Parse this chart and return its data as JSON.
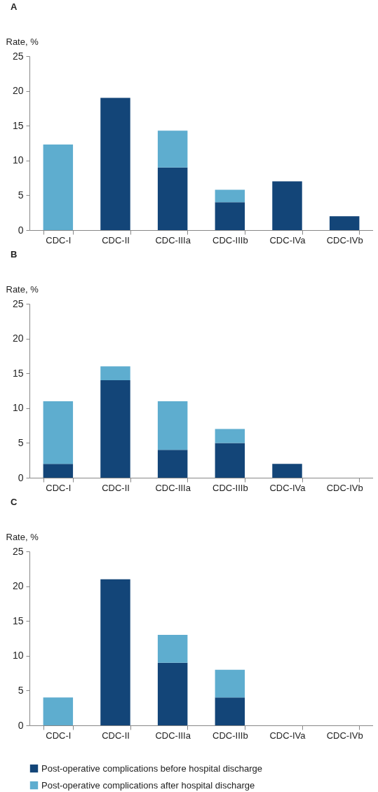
{
  "chart_data": [
    {
      "type": "bar",
      "title": "A",
      "ylabel": "Rate, %",
      "stacked": true,
      "categories": [
        "CDC-I",
        "CDC-II",
        "CDC-IIIa",
        "CDC-IIIb",
        "CDC-IVa",
        "CDC-IVb"
      ],
      "ylim": [
        0,
        25
      ],
      "yticks": [
        0,
        5,
        10,
        15,
        20,
        25
      ],
      "series": [
        {
          "color": "#134578",
          "values": [
            0,
            19,
            9,
            4,
            7,
            2
          ]
        },
        {
          "color": "#5eadcf",
          "values": [
            12.3,
            0,
            5.3,
            1.8,
            0,
            0
          ]
        }
      ]
    },
    {
      "type": "bar",
      "title": "B",
      "ylabel": "Rate, %",
      "stacked": true,
      "categories": [
        "CDC-I",
        "CDC-II",
        "CDC-IIIa",
        "CDC-IIIb",
        "CDC-IVa",
        "CDC-IVb"
      ],
      "ylim": [
        0,
        25
      ],
      "yticks": [
        0,
        5,
        10,
        15,
        20,
        25
      ],
      "series": [
        {
          "color": "#134578",
          "values": [
            2,
            14,
            4,
            5,
            2,
            0
          ]
        },
        {
          "color": "#5eadcf",
          "values": [
            9,
            2,
            7,
            2,
            0,
            0
          ]
        }
      ]
    },
    {
      "type": "bar",
      "title": "C",
      "ylabel": "Rate, %",
      "stacked": true,
      "legend": "bottom",
      "categories": [
        "CDC-I",
        "CDC-II",
        "CDC-IIIa",
        "CDC-IIIb",
        "CDC-IVa",
        "CDC-IVb"
      ],
      "ylim": [
        0,
        25
      ],
      "yticks": [
        0,
        5,
        10,
        15,
        20,
        25
      ],
      "series": [
        {
          "name": "Post-operative complications before hospital discharge",
          "color": "#134578",
          "values": [
            0,
            21,
            9,
            4,
            0,
            0
          ]
        },
        {
          "name": "Post-operative complications after hospital discharge",
          "color": "#5eadcf",
          "values": [
            4,
            0,
            4,
            4,
            0,
            0
          ]
        }
      ]
    }
  ]
}
